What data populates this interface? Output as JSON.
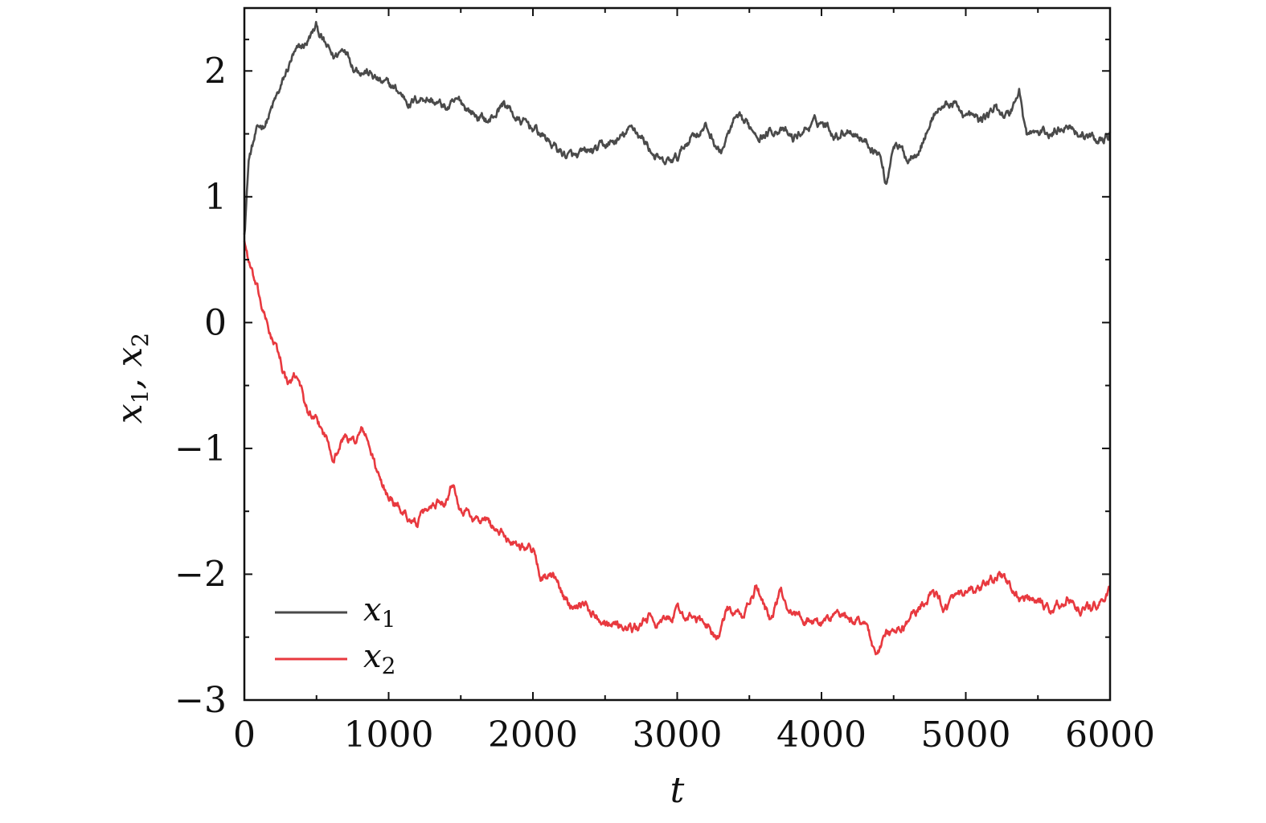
{
  "chart_data": {
    "type": "line",
    "xlabel": "t",
    "ylabel": {
      "parts": [
        "x",
        "1",
        ", x",
        "2"
      ]
    },
    "xlim": [
      0,
      6000
    ],
    "ylim": [
      -3,
      2.5
    ],
    "x_ticks": [
      0,
      1000,
      2000,
      3000,
      4000,
      5000,
      6000
    ],
    "y_ticks": [
      -3,
      -2,
      -1,
      0,
      1,
      2
    ],
    "y_tick_labels": [
      "−3",
      "−2",
      "−1",
      "0",
      "1",
      "2"
    ],
    "grid": false,
    "legend_position": "bottom-left",
    "colors": {
      "x1": "#4a4a4a",
      "x2": "#e8393f"
    },
    "series": [
      {
        "name": "x1",
        "legend_base": "x",
        "legend_sub": "1",
        "x": [
          0,
          30,
          80,
          150,
          250,
          330,
          420,
          500,
          560,
          620,
          700,
          760,
          850,
          950,
          1050,
          1150,
          1250,
          1400,
          1500,
          1600,
          1700,
          1800,
          1900,
          2000,
          2100,
          2200,
          2300,
          2400,
          2500,
          2600,
          2700,
          2800,
          2900,
          3000,
          3100,
          3200,
          3300,
          3400,
          3500,
          3600,
          3700,
          3800,
          3900,
          4000,
          4100,
          4200,
          4300,
          4400,
          4450,
          4500,
          4600,
          4700,
          4800,
          4900,
          5000,
          5100,
          5200,
          5300,
          5370,
          5420,
          5500,
          5600,
          5700,
          5800,
          5900,
          6000
        ],
        "y": [
          0.7,
          1.3,
          1.5,
          1.6,
          1.85,
          2.1,
          2.2,
          2.35,
          2.2,
          2.1,
          2.2,
          2.05,
          2.0,
          1.9,
          1.85,
          1.75,
          1.8,
          1.7,
          1.75,
          1.65,
          1.6,
          1.75,
          1.6,
          1.55,
          1.45,
          1.35,
          1.3,
          1.35,
          1.4,
          1.45,
          1.55,
          1.4,
          1.25,
          1.3,
          1.5,
          1.55,
          1.35,
          1.6,
          1.55,
          1.5,
          1.55,
          1.45,
          1.55,
          1.6,
          1.5,
          1.55,
          1.45,
          1.35,
          1.1,
          1.45,
          1.3,
          1.45,
          1.7,
          1.75,
          1.65,
          1.6,
          1.7,
          1.65,
          1.85,
          1.5,
          1.5,
          1.5,
          1.6,
          1.5,
          1.45,
          1.5
        ]
      },
      {
        "name": "x2",
        "legend_base": "x",
        "legend_sub": "2",
        "x": [
          0,
          50,
          100,
          150,
          200,
          250,
          300,
          380,
          420,
          480,
          550,
          620,
          700,
          760,
          820,
          870,
          950,
          1050,
          1150,
          1200,
          1300,
          1400,
          1450,
          1500,
          1600,
          1700,
          1800,
          1900,
          2000,
          2050,
          2150,
          2250,
          2350,
          2400,
          2500,
          2600,
          2700,
          2800,
          2900,
          3000,
          3100,
          3200,
          3280,
          3350,
          3450,
          3550,
          3650,
          3720,
          3800,
          3900,
          4000,
          4100,
          4200,
          4300,
          4380,
          4450,
          4550,
          4650,
          4750,
          4850,
          4950,
          5050,
          5150,
          5230,
          5300,
          5400,
          5500,
          5600,
          5700,
          5800,
          5900,
          6000
        ],
        "y": [
          0.65,
          0.4,
          0.2,
          0.0,
          -0.15,
          -0.3,
          -0.5,
          -0.42,
          -0.65,
          -0.78,
          -0.88,
          -1.05,
          -0.9,
          -0.95,
          -0.85,
          -1.0,
          -1.3,
          -1.45,
          -1.55,
          -1.6,
          -1.45,
          -1.38,
          -1.25,
          -1.45,
          -1.55,
          -1.6,
          -1.7,
          -1.75,
          -1.8,
          -2.0,
          -2.05,
          -2.25,
          -2.2,
          -2.3,
          -2.35,
          -2.4,
          -2.45,
          -2.35,
          -2.4,
          -2.3,
          -2.35,
          -2.4,
          -2.5,
          -2.3,
          -2.35,
          -2.1,
          -2.35,
          -2.15,
          -2.3,
          -2.35,
          -2.4,
          -2.3,
          -2.4,
          -2.35,
          -2.65,
          -2.5,
          -2.45,
          -2.3,
          -2.15,
          -2.25,
          -2.2,
          -2.15,
          -2.1,
          -1.98,
          -2.1,
          -2.2,
          -2.25,
          -2.3,
          -2.2,
          -2.28,
          -2.25,
          -2.15
        ]
      }
    ]
  }
}
